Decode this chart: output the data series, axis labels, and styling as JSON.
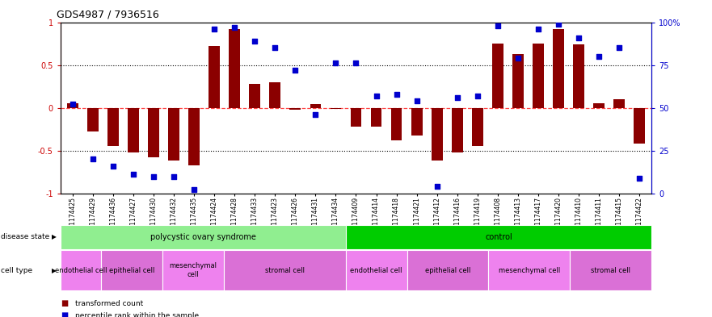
{
  "title": "GDS4987 / 7936516",
  "samples": [
    "GSM1174425",
    "GSM1174429",
    "GSM1174436",
    "GSM1174427",
    "GSM1174430",
    "GSM1174432",
    "GSM1174435",
    "GSM1174424",
    "GSM1174428",
    "GSM1174433",
    "GSM1174423",
    "GSM1174426",
    "GSM1174431",
    "GSM1174434",
    "GSM1174409",
    "GSM1174414",
    "GSM1174418",
    "GSM1174421",
    "GSM1174412",
    "GSM1174416",
    "GSM1174419",
    "GSM1174408",
    "GSM1174413",
    "GSM1174417",
    "GSM1174420",
    "GSM1174410",
    "GSM1174411",
    "GSM1174415",
    "GSM1174422"
  ],
  "bar_values": [
    0.05,
    -0.28,
    -0.45,
    -0.52,
    -0.58,
    -0.62,
    -0.67,
    0.72,
    0.92,
    0.28,
    0.3,
    -0.02,
    0.04,
    -0.01,
    -0.22,
    -0.22,
    -0.38,
    -0.32,
    -0.62,
    -0.52,
    -0.45,
    0.75,
    0.63,
    0.75,
    0.92,
    0.74,
    0.05,
    0.1,
    -0.42
  ],
  "dot_values_pct": [
    52,
    20,
    16,
    11,
    10,
    10,
    2,
    96,
    97,
    89,
    85,
    72,
    46,
    76,
    76,
    57,
    58,
    54,
    4,
    56,
    57,
    98,
    79,
    96,
    99,
    91,
    80,
    85,
    9
  ],
  "disease_state_groups": [
    {
      "label": "polycystic ovary syndrome",
      "start": 0,
      "end": 14,
      "color": "#90EE90"
    },
    {
      "label": "control",
      "start": 14,
      "end": 29,
      "color": "#00CC00"
    }
  ],
  "cell_type_groups": [
    {
      "label": "endothelial cell",
      "start": 0,
      "end": 2,
      "color": "#EE82EE"
    },
    {
      "label": "epithelial cell",
      "start": 2,
      "end": 5,
      "color": "#DA70D6"
    },
    {
      "label": "mesenchymal\ncell",
      "start": 5,
      "end": 8,
      "color": "#EE82EE"
    },
    {
      "label": "stromal cell",
      "start": 8,
      "end": 14,
      "color": "#DA70D6"
    },
    {
      "label": "endothelial cell",
      "start": 14,
      "end": 17,
      "color": "#EE82EE"
    },
    {
      "label": "epithelial cell",
      "start": 17,
      "end": 21,
      "color": "#DA70D6"
    },
    {
      "label": "mesenchymal cell",
      "start": 21,
      "end": 25,
      "color": "#EE82EE"
    },
    {
      "label": "stromal cell",
      "start": 25,
      "end": 29,
      "color": "#DA70D6"
    }
  ],
  "bar_color": "#8B0000",
  "dot_color": "#0000CD",
  "bar_zero_line_color": "#FF4444",
  "ylim": [
    -1,
    1
  ],
  "y2lim": [
    0,
    100
  ],
  "yticks": [
    -1,
    -0.5,
    0,
    0.5,
    1
  ],
  "ytick_labels": [
    "-1",
    "-0.5",
    "0",
    "0.5",
    "1"
  ],
  "y2ticks": [
    0,
    25,
    50,
    75,
    100
  ],
  "y2tick_labels": [
    "0",
    "25",
    "50",
    "75",
    "100%"
  ],
  "hline_values": [
    -0.5,
    0.5
  ],
  "legend_items": [
    {
      "label": "transformed count",
      "color": "#8B0000"
    },
    {
      "label": "percentile rank within the sample",
      "color": "#0000CD"
    }
  ],
  "title_fontsize": 9,
  "tick_fontsize": 5.5,
  "axis_fontsize": 7
}
